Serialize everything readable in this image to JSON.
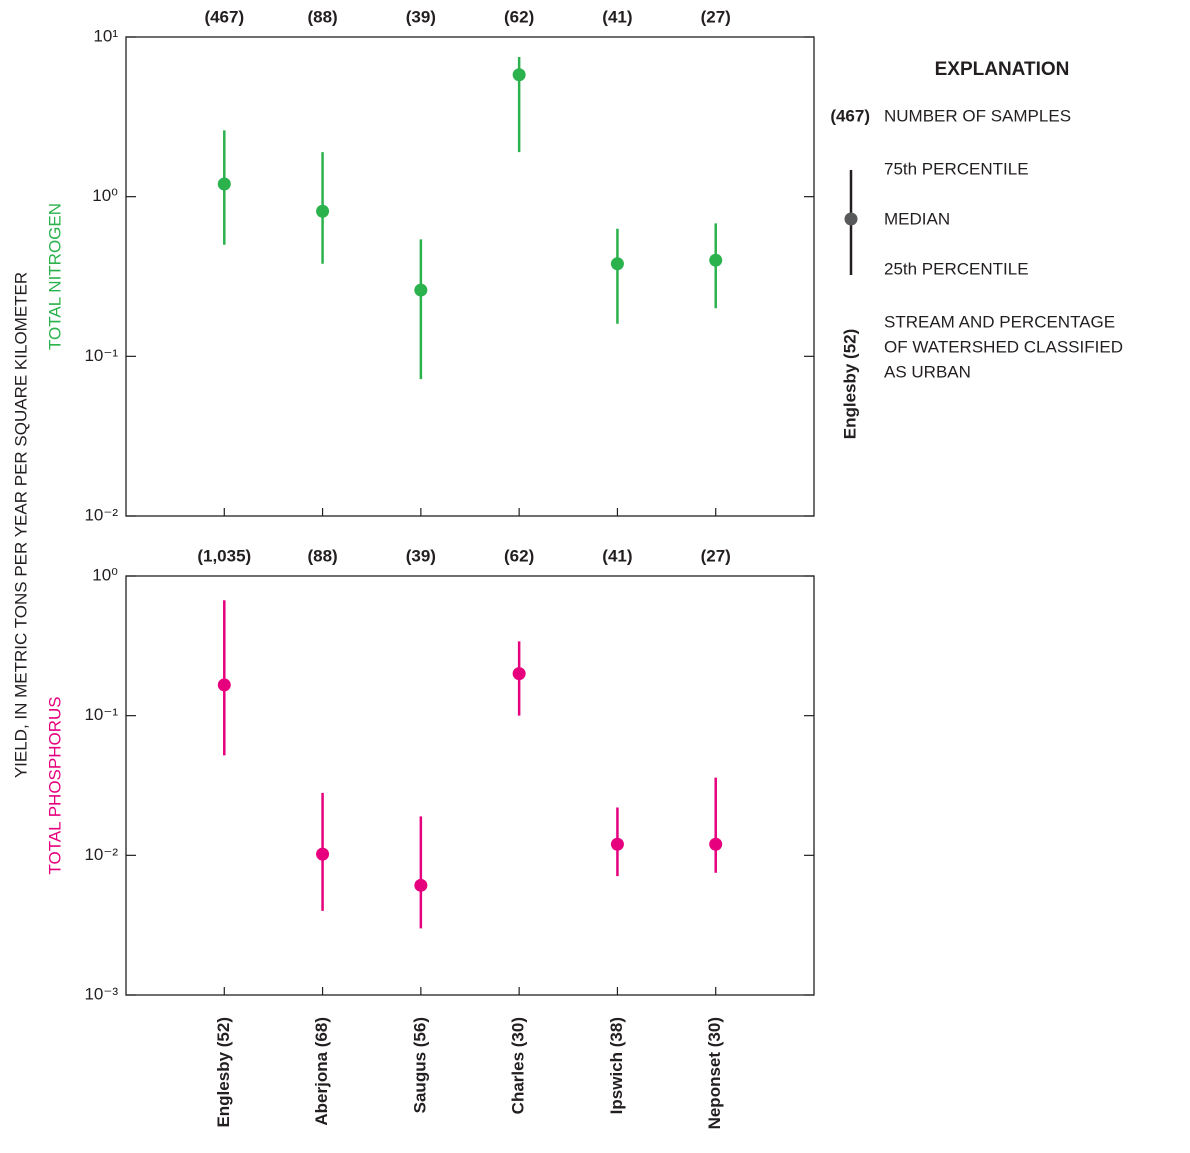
{
  "y_label": "YIELD, IN METRIC TONS PER YEAR PER SQUARE KILOMETER",
  "explanation": {
    "title": "EXPLANATION",
    "count_example": "(467)",
    "count_text": "NUMBER OF SAMPLES",
    "p75": "75th PERCENTILE",
    "median": "MEDIAN",
    "p25": "25th PERCENTILE",
    "stream_example": "Englesby (52)",
    "stream_text": [
      "STREAM AND PERCENTAGE",
      "OF WATERSHED CLASSIFIED",
      "AS URBAN"
    ]
  },
  "chart_data": [
    {
      "type": "range",
      "y_label": "TOTAL NITROGEN",
      "color": "#2bb24c",
      "log_scale": true,
      "sample_labels": [
        "(467)",
        "(88)",
        "(39)",
        "(62)",
        "(41)",
        "(27)"
      ],
      "median": [
        1.2,
        0.81,
        0.26,
        5.8,
        0.38,
        0.4
      ],
      "p25": [
        0.5,
        0.38,
        0.072,
        1.9,
        0.16,
        0.2
      ],
      "p75": [
        2.6,
        1.9,
        0.54,
        7.5,
        0.63,
        0.68
      ],
      "ylim": [
        0.01,
        10
      ],
      "yticks": [
        {
          "value": 10,
          "label": "10¹"
        },
        {
          "value": 1,
          "label": "10⁰"
        },
        {
          "value": 0.1,
          "label": "10⁻¹"
        },
        {
          "value": 0.01,
          "label": "10⁻²"
        }
      ]
    },
    {
      "type": "range",
      "y_label": "TOTAL PHOSPHORUS",
      "color": "#e6007e",
      "log_scale": true,
      "categories": [
        "Englesby (52)",
        "Aberjona (68)",
        "Saugus (56)",
        "Charles (30)",
        "Ipswich (38)",
        "Neponset (30)"
      ],
      "sample_labels": [
        "(1,035)",
        "(88)",
        "(39)",
        "(62)",
        "(41)",
        "(27)"
      ],
      "median": [
        0.166,
        0.0102,
        0.0061,
        0.2,
        0.012,
        0.012
      ],
      "p25": [
        0.052,
        0.004,
        0.003,
        0.1,
        0.0071,
        0.0075
      ],
      "p75": [
        0.67,
        0.028,
        0.019,
        0.34,
        0.022,
        0.036
      ],
      "ylim": [
        0.001,
        1
      ],
      "yticks": [
        {
          "value": 1,
          "label": "10⁰"
        },
        {
          "value": 0.1,
          "label": "10⁻¹"
        },
        {
          "value": 0.01,
          "label": "10⁻²"
        },
        {
          "value": 0.001,
          "label": "10⁻³"
        }
      ]
    }
  ]
}
